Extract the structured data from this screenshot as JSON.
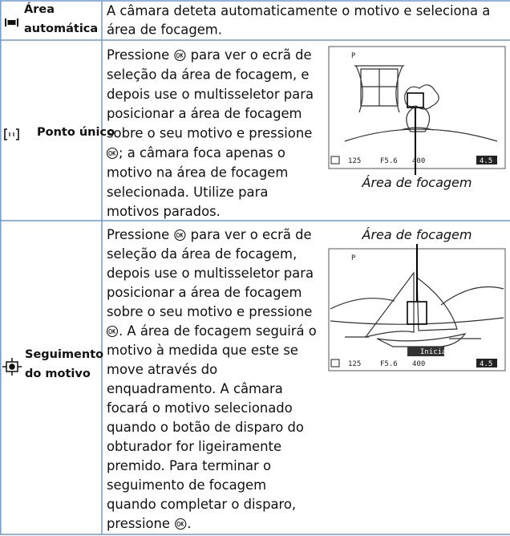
{
  "table": {
    "rows": [
      {
        "label": [
          "Área",
          "automática"
        ],
        "description": [
          "A câmara deteta automaticamente o motivo e seleciona a",
          "área de focagem."
        ]
      },
      {
        "label": [
          "Ponto único"
        ],
        "description": [
          {
            "before": "Pressione ",
            "after": " para ver o ecrã de"
          },
          "seleção da área de focagem, e",
          "depois use o multisseletor para",
          "posicionar a área de focagem",
          "sobre o seu motivo e pressione",
          {
            "after": "; a câmara foca apenas o"
          },
          "motivo na área de focagem",
          "selecionada. Utilize para",
          "motivos parados."
        ],
        "figure": {
          "caption": "Área de focagem",
          "screen": {
            "mode": "P",
            "shutter": "125",
            "aperture": "F5.6",
            "iso": "400",
            "remaining": "4.5"
          }
        }
      },
      {
        "label": [
          "Seguimento",
          "do motivo"
        ],
        "description": [
          {
            "before": "Pressione ",
            "after": " para ver o ecrã de"
          },
          "seleção da área de focagem,",
          "depois use o multisseletor para",
          "posicionar a área de focagem",
          "sobre o seu motivo e pressione",
          {
            "after": ". A área de focagem seguirá o"
          },
          "motivo à medida que este se",
          "move através do",
          "enquadramento. A câmara",
          "focará o motivo selecionado",
          "quando o botão de disparo do",
          "obturador for ligeiramente",
          "premido. Para terminar o",
          "seguimento de focagem",
          "quando completar o disparo,",
          {
            "before": "pressione ",
            "after": "."
          }
        ],
        "figure": {
          "caption": "Área de focagem",
          "screen": {
            "mode": "P",
            "shutter": "125",
            "aperture": "F5.6",
            "iso": "400",
            "remaining": "4.5",
            "button": "Iniciar"
          }
        }
      }
    ]
  }
}
